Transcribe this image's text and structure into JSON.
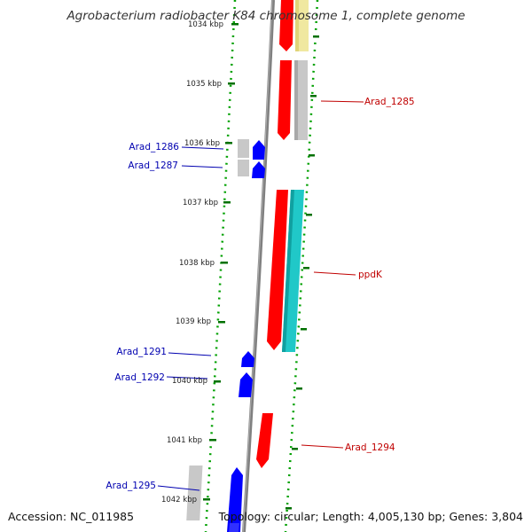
{
  "title": "Agrobacterium radiobacter K84 chromosome 1, complete genome",
  "accession": "Accession: NC_011985",
  "topology": "Topology: circular; Length: 4,005,130 bp; Genes: 3,804",
  "colors": {
    "forward": "#ff0000",
    "reverse": "#0000ff",
    "grey": "#c8c8c8",
    "yellow": "#f0e8a0",
    "cyan": "#20c8c8",
    "tick": "#007000",
    "label_forward": "#c00000",
    "label_reverse": "#0000b0",
    "backbone": "#808080"
  },
  "kbp_ticks": [
    {
      "label": "1034 kbp"
    },
    {
      "label": "1035 kbp"
    },
    {
      "label": "1036 kbp"
    },
    {
      "label": "1037 kbp"
    },
    {
      "label": "1038 kbp"
    },
    {
      "label": "1039 kbp"
    },
    {
      "label": "1040 kbp"
    },
    {
      "label": "1041 kbp"
    },
    {
      "label": "1042 kbp"
    }
  ],
  "gene_labels": [
    {
      "label": "Arad_1285",
      "strand": "forward"
    },
    {
      "label": "Arad_1286",
      "strand": "reverse"
    },
    {
      "label": "Arad_1287",
      "strand": "reverse"
    },
    {
      "label": "ppdK",
      "strand": "forward"
    },
    {
      "label": "Arad_1291",
      "strand": "reverse"
    },
    {
      "label": "Arad_1292",
      "strand": "reverse"
    },
    {
      "label": "Arad_1294",
      "strand": "forward"
    },
    {
      "label": "Arad_1295",
      "strand": "reverse"
    }
  ]
}
